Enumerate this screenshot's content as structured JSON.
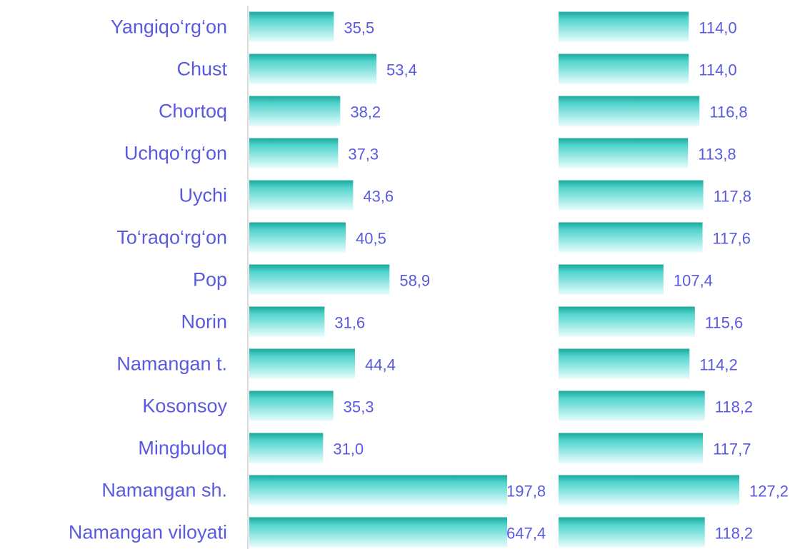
{
  "chart_data": [
    {
      "type": "hbar",
      "categories": [
        "Yangiqo‘rg‘on",
        "Chust",
        "Chortoq",
        "Uchqo‘rg‘on",
        "Uychi",
        "To‘raqo‘rg‘on",
        "Pop",
        "Norin",
        "Namangan t.",
        "Kosonsoy",
        "Mingbuloq",
        "Namangan sh.",
        "Namangan viloyati"
      ],
      "values": [
        35.5,
        53.4,
        38.2,
        37.3,
        43.6,
        40.5,
        58.9,
        31.6,
        44.4,
        35.3,
        31.0,
        197.8,
        647.4
      ],
      "value_labels": [
        "35,5",
        "53,4",
        "38,2",
        "37,3",
        "43,6",
        "40,5",
        "58,9",
        "31,6",
        "44,4",
        "35,3",
        "31,0",
        "197,8",
        "647,4"
      ],
      "xlim": [
        0,
        108
      ],
      "color": "#1aa89c"
    },
    {
      "type": "hbar",
      "values": [
        114.0,
        114.0,
        116.8,
        113.8,
        117.8,
        117.6,
        107.4,
        115.6,
        114.2,
        118.2,
        117.7,
        127.2,
        118.2
      ],
      "value_labels": [
        "114,0",
        "114,0",
        "116,8",
        "113,8",
        "117,8",
        "117,6",
        "107,4",
        "115,6",
        "114,2",
        "118,2",
        "117,7",
        "127,2",
        "118,2"
      ],
      "xlim": [
        80,
        130
      ],
      "color": "#1aa89c"
    }
  ]
}
